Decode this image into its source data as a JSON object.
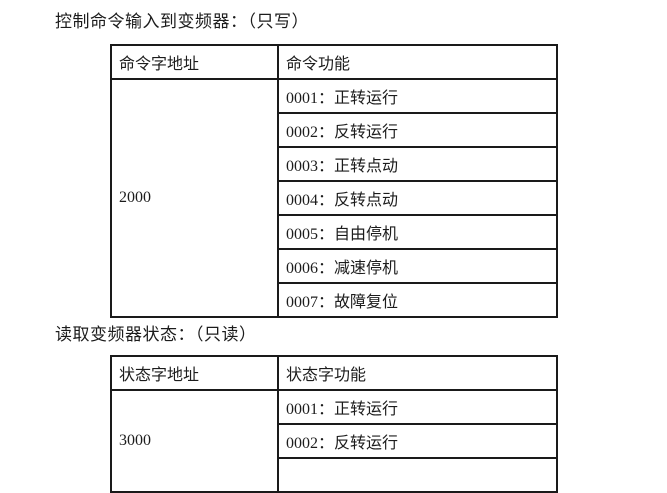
{
  "page": {
    "background": "#ffffff",
    "text_color": "#1c1c1c",
    "border_color": "#1a1a1a"
  },
  "sections": [
    {
      "title": "控制命令输入到变频器：（只写）",
      "table": {
        "headers": [
          "命令字地址",
          "命令功能"
        ],
        "address": "2000",
        "functions": [
          "0001：正转运行",
          "0002：反转运行",
          "0003：正转点动",
          "0004：反转点动",
          "0005：自由停机",
          "0006：减速停机",
          "0007：故障复位"
        ]
      }
    },
    {
      "title": "读取变频器状态：（只读）",
      "table": {
        "headers": [
          "状态字地址",
          "状态字功能"
        ],
        "address": "3000",
        "functions": [
          "0001：正转运行",
          "0002：反转运行"
        ]
      }
    }
  ]
}
